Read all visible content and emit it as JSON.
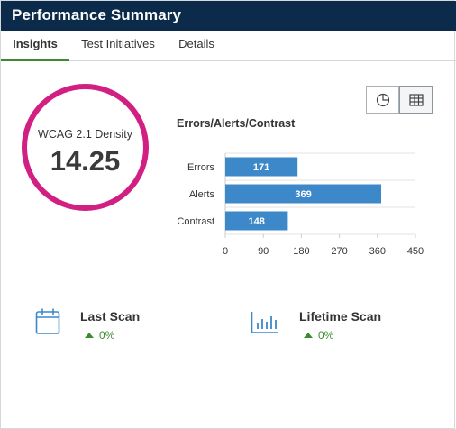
{
  "header": {
    "title": "Performance Summary"
  },
  "tabs": [
    {
      "label": "Insights",
      "active": true
    },
    {
      "label": "Test Initiatives",
      "active": false
    },
    {
      "label": "Details",
      "active": false
    }
  ],
  "density": {
    "label": "WCAG 2.1 Density",
    "value": "14.25"
  },
  "view_toggle": {
    "options": [
      "pie-chart-icon",
      "table-grid-icon"
    ],
    "selected": "table-grid-icon"
  },
  "colors": {
    "brand_header": "#0c2b4a",
    "ring": "#d21f82",
    "bar": "#3c88c9",
    "positive": "#3d8b2f"
  },
  "chart_data": {
    "type": "bar",
    "orientation": "horizontal",
    "title": "Errors/Alerts/Contrast",
    "categories": [
      "Errors",
      "Alerts",
      "Contrast"
    ],
    "values": [
      171,
      369,
      148
    ],
    "xlim": [
      0,
      450
    ],
    "xticks": [
      0,
      90,
      180,
      270,
      360,
      450
    ],
    "grid": true
  },
  "stats": [
    {
      "title": "Last Scan",
      "delta": "0%",
      "icon": "calendar-icon",
      "trend": "up"
    },
    {
      "title": "Lifetime Scan",
      "delta": "0%",
      "icon": "bar-chart-icon",
      "trend": "up"
    }
  ]
}
